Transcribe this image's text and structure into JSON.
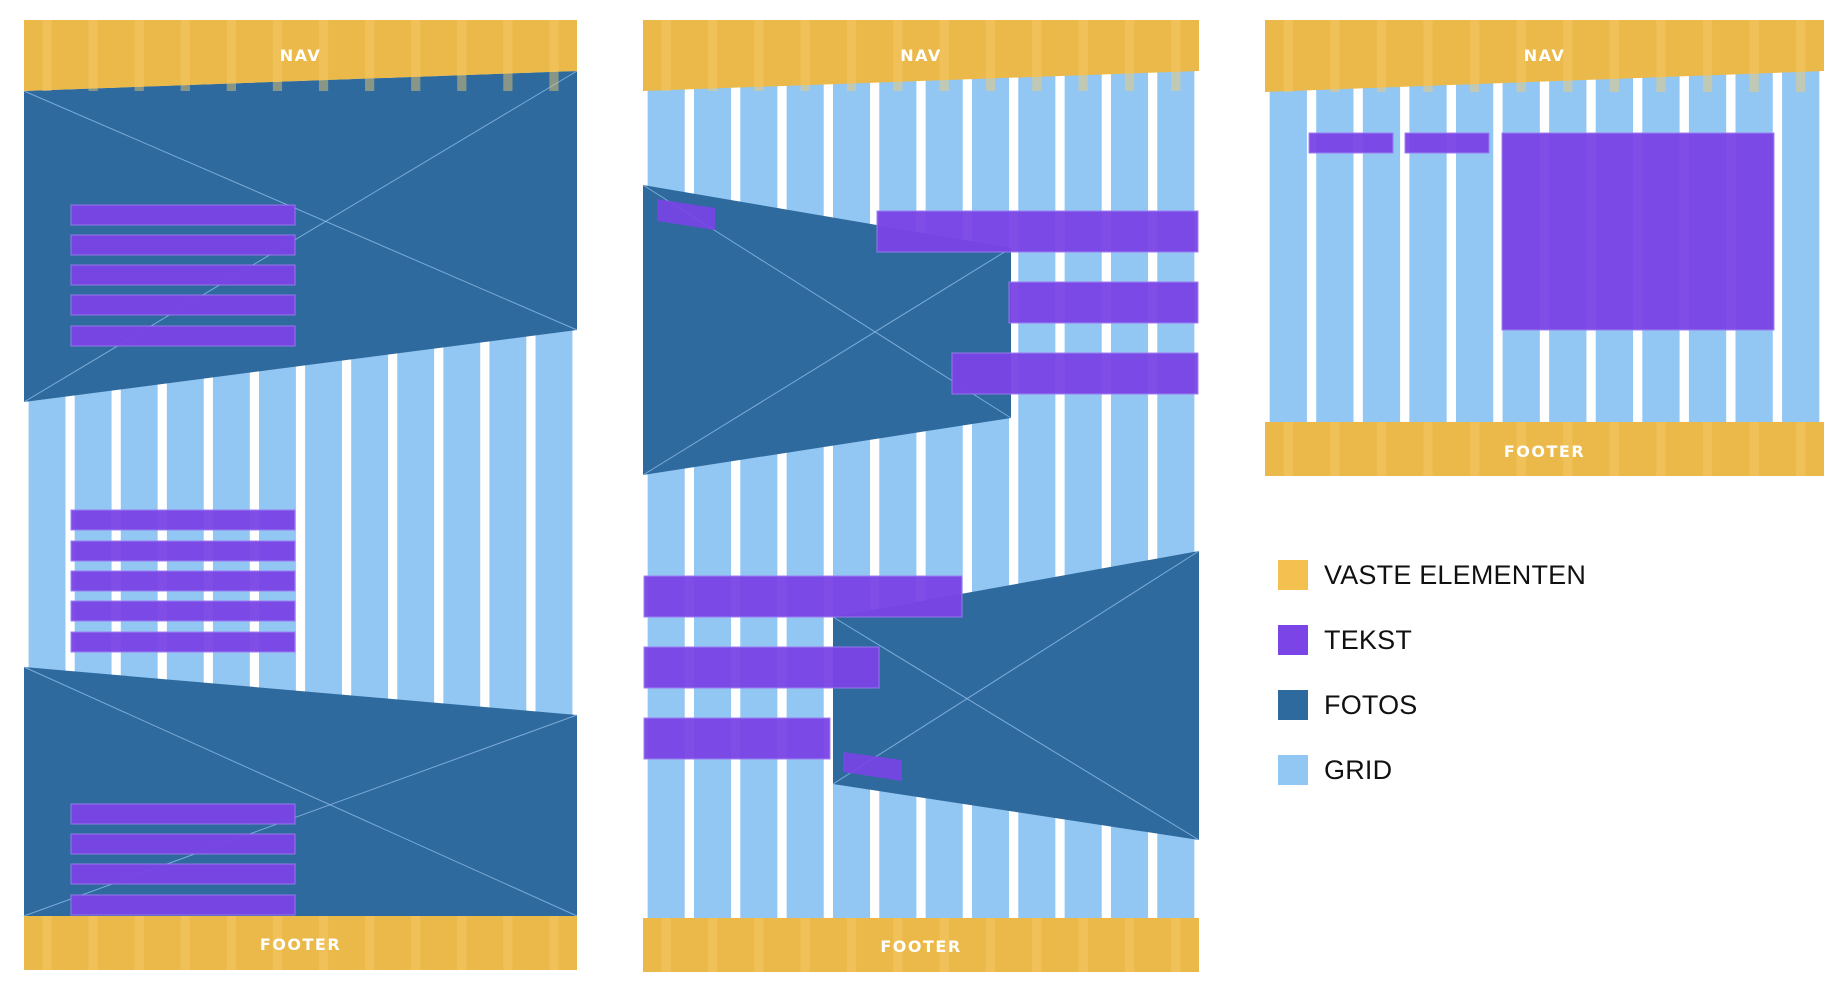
{
  "colors": {
    "fixed": "#ebb94a",
    "text": "#7a44e6",
    "photo": "#2e6a9e",
    "grid_col": "#92c6f3",
    "grid_gap": "#ffffff",
    "fixed_col": "#f1c25a"
  },
  "layouts": [
    {
      "id": "layout-1",
      "nav_label": "NAV",
      "footer_label": "FOOTER",
      "columns": 12
    },
    {
      "id": "layout-2",
      "nav_label": "NAV",
      "footer_label": "FOOTER",
      "columns": 12
    },
    {
      "id": "layout-3",
      "nav_label": "NAV",
      "footer_label": "FOOTER",
      "columns": 12
    }
  ],
  "legend": [
    {
      "label": "VASTE ELEMENTEN",
      "color": "#f4c150"
    },
    {
      "label": "TEKST",
      "color": "#7a44e6"
    },
    {
      "label": "FOTOS",
      "color": "#2e6a9e"
    },
    {
      "label": "GRID",
      "color": "#92c6f3"
    }
  ]
}
